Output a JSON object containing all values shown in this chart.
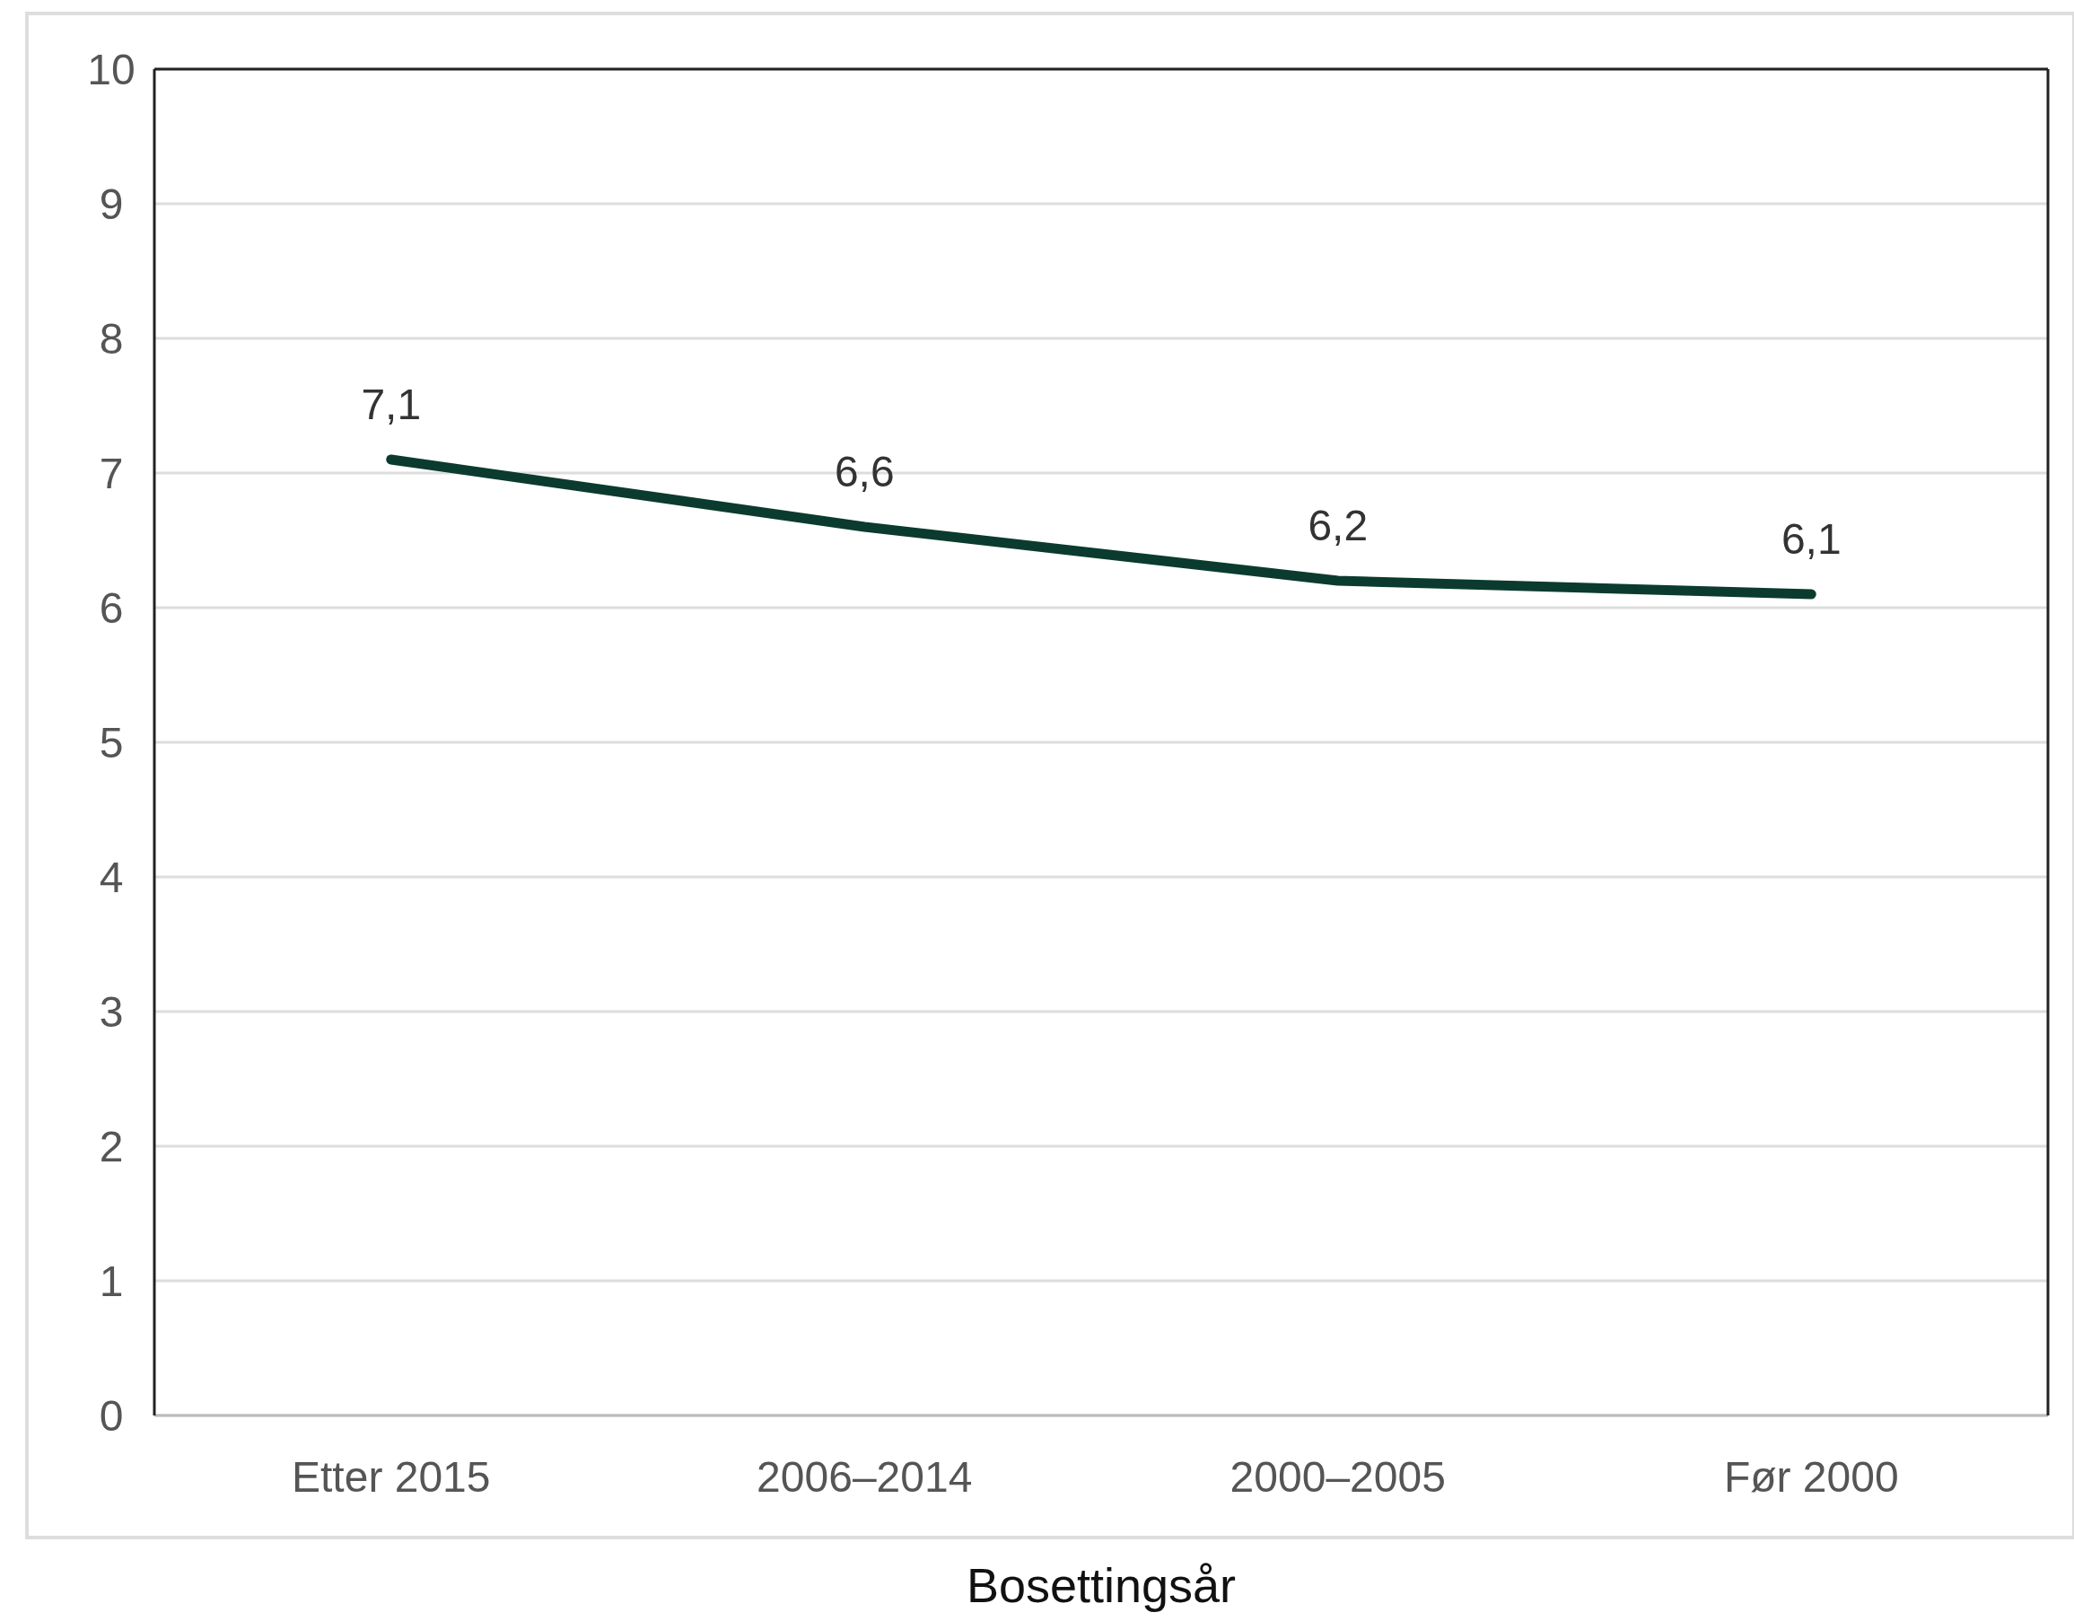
{
  "chart_data": {
    "type": "line",
    "xlabel": "Bosettingsår",
    "categories": [
      "Etter 2015",
      "2006–2014",
      "2000–2005",
      "Før 2000"
    ],
    "series": [
      {
        "color": "#0b3b2e",
        "values": [
          7.1,
          6.6,
          6.2,
          6.1
        ],
        "value_labels": [
          "7,1",
          "6,6",
          "6,2",
          "6,1"
        ]
      }
    ],
    "ylim": [
      0,
      10
    ],
    "yticks": [
      0,
      1,
      2,
      3,
      4,
      5,
      6,
      7,
      8,
      9,
      10
    ],
    "grid": "y",
    "marker": "none",
    "line_style": "solid"
  }
}
